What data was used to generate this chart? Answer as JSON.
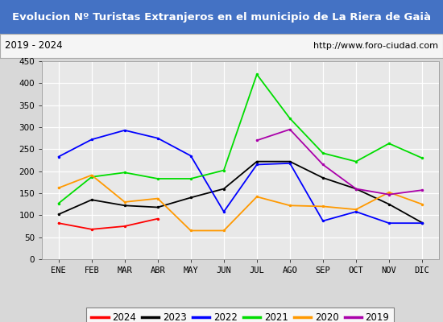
{
  "title": "Evolucion Nº Turistas Extranjeros en el municipio de La Riera de Gaià",
  "title_bgcolor": "#4472c4",
  "title_fgcolor": "#ffffff",
  "subtitle_left": "2019 - 2024",
  "subtitle_right": "http://www.foro-ciudad.com",
  "months": [
    "ENE",
    "FEB",
    "MAR",
    "ABR",
    "MAY",
    "JUN",
    "JUL",
    "AGO",
    "SEP",
    "OCT",
    "NOV",
    "DIC"
  ],
  "series": {
    "2024": {
      "color": "#ff0000",
      "values": [
        82,
        68,
        75,
        92,
        null,
        null,
        null,
        null,
        null,
        null,
        null,
        null
      ]
    },
    "2023": {
      "color": "#000000",
      "values": [
        102,
        135,
        122,
        118,
        140,
        160,
        222,
        222,
        185,
        160,
        125,
        83
      ]
    },
    "2022": {
      "color": "#0000ff",
      "values": [
        233,
        272,
        293,
        275,
        235,
        108,
        215,
        218,
        87,
        108,
        82,
        82
      ]
    },
    "2021": {
      "color": "#00dd00",
      "values": [
        127,
        187,
        197,
        183,
        183,
        202,
        420,
        320,
        241,
        222,
        263,
        230
      ]
    },
    "2020": {
      "color": "#ff9900",
      "values": [
        162,
        191,
        130,
        138,
        65,
        65,
        142,
        122,
        120,
        113,
        152,
        125
      ]
    },
    "2019": {
      "color": "#aa00aa",
      "values": [
        null,
        null,
        null,
        null,
        null,
        null,
        270,
        295,
        215,
        160,
        147,
        157
      ]
    }
  },
  "ylim": [
    0,
    450
  ],
  "yticks": [
    0,
    50,
    100,
    150,
    200,
    250,
    300,
    350,
    400,
    450
  ],
  "plot_bg_color": "#e8e8e8",
  "outer_bg_color": "#d8d8d8",
  "grid_color": "#ffffff",
  "legend_order": [
    "2024",
    "2023",
    "2022",
    "2021",
    "2020",
    "2019"
  ]
}
